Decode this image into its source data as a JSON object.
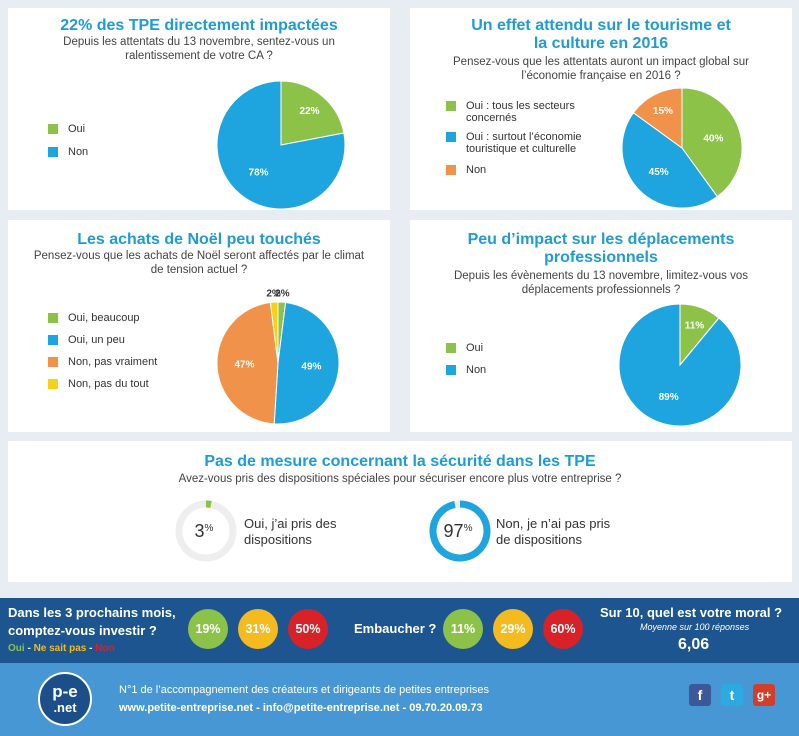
{
  "panel1": {
    "title": "22% des TPE directement impactées",
    "subtitle_l1": "Depuis les attentats du 13 novembre, sentez-vous un",
    "subtitle_l2": "ralentissement de votre CA ?",
    "legend": [
      "Oui",
      "Non"
    ]
  },
  "panel2": {
    "title_l1": "Un effet attendu sur le tourisme et",
    "title_l2": "la culture en 2016",
    "subtitle_l1": "Pensez-vous que les attentats auront un impact global sur",
    "subtitle_l2": "l’économie française en 2016 ?",
    "legend": [
      {
        "l1": "Oui : tous les secteurs",
        "l2": "concernés"
      },
      {
        "l1": "Oui : surtout l’économie",
        "l2": "touristique et culturelle"
      },
      {
        "l1": "Non",
        "l2": ""
      }
    ]
  },
  "panel3": {
    "title": "Les achats de Noël peu touchés",
    "subtitle_l1": "Pensez-vous que les achats de Noël seront affectés par le climat",
    "subtitle_l2": "de tension actuel ?",
    "legend": [
      "Oui, beaucoup",
      "Oui, un peu",
      "Non, pas vraiment",
      "Non, pas du tout"
    ]
  },
  "panel4": {
    "title_l1": "Peu d’impact sur les déplacements",
    "title_l2": "professionnels",
    "subtitle_l1": "Depuis les évènements du 13 novembre, limitez-vous vos",
    "subtitle_l2": "déplacements professionnels ?",
    "legend": [
      "Oui",
      "Non"
    ]
  },
  "panel5": {
    "title": "Pas de mesure concernant la sécurité dans les TPE",
    "subtitle": "Avez-vous pris des dispositions spéciales pour sécuriser encore plus votre entreprise ?",
    "yes_l1": "Oui, j’ai pris des",
    "yes_l2": "dispositions",
    "no_l1": "Non, je n’ai pas pris",
    "no_l2": "de dispositions"
  },
  "band": {
    "invest_q_l1": "Dans les 3 prochains mois,",
    "invest_q_l2": "comptez-vous investir ?",
    "key_oui": "Oui",
    "key_sep1": " - ",
    "key_nsp": "Ne sait pas",
    "key_sep2": " - ",
    "key_non": "Non",
    "hire_q": "Embaucher ?",
    "moral_q": "Sur 10, quel est votre moral ?",
    "moral_note": "Moyenne sur 100 réponses",
    "moral_value": "6,06"
  },
  "footer": {
    "logo_top": "p-e",
    "logo_bottom": ".net",
    "tagline": "N°1 de l’accompagnement des créateurs et dirigeants de petites entreprises",
    "contact": "www.petite-entreprise.net - info@petite-entreprise.net - 09.70.20.09.73",
    "fb": "f",
    "tw": "t",
    "gp": "g+"
  },
  "colors": {
    "green": "#8dc249",
    "blue": "#1ea5e0",
    "orange": "#f0924a",
    "yellow": "#f5d117",
    "red": "#d92128",
    "amber": "#f5ba1e",
    "title": "#1f9bd7"
  },
  "chart_data": [
    {
      "type": "pie",
      "title": "22% des TPE directement impactées",
      "categories": [
        "Oui",
        "Non"
      ],
      "values": [
        22,
        78
      ],
      "colors": [
        "#8dc249",
        "#1ea5e0"
      ]
    },
    {
      "type": "pie",
      "title": "Un effet attendu sur le tourisme et la culture en 2016",
      "categories": [
        "Oui : tous les secteurs concernés",
        "Oui : surtout l’économie touristique et culturelle",
        "Non"
      ],
      "values": [
        40,
        45,
        15
      ],
      "colors": [
        "#8dc249",
        "#1ea5e0",
        "#f0924a"
      ]
    },
    {
      "type": "pie",
      "title": "Les achats de Noël peu touchés",
      "categories": [
        "Oui, beaucoup",
        "Oui, un peu",
        "Non, pas vraiment",
        "Non, pas du tout"
      ],
      "values": [
        2,
        49,
        47,
        2
      ],
      "colors": [
        "#8dc249",
        "#1ea5e0",
        "#f0924a",
        "#f5d117"
      ]
    },
    {
      "type": "pie",
      "title": "Peu d’impact sur les déplacements professionnels",
      "categories": [
        "Oui",
        "Non"
      ],
      "values": [
        11,
        89
      ],
      "colors": [
        "#8dc249",
        "#1ea5e0"
      ]
    },
    {
      "type": "pie",
      "title": "Pas de mesure concernant la sécurité dans les TPE",
      "categories": [
        "Oui, j’ai pris des dispositions",
        "Non, je n’ai pas pris de dispositions"
      ],
      "values": [
        3,
        97
      ],
      "colors": [
        "#8dc249",
        "#1ea5e0"
      ]
    },
    {
      "type": "table",
      "title": "Dans les 3 prochains mois, comptez-vous investir ?",
      "categories": [
        "Oui",
        "Ne sait pas",
        "Non"
      ],
      "values": [
        19,
        31,
        50
      ],
      "colors": [
        "#8dc249",
        "#f5ba1e",
        "#d92128"
      ]
    },
    {
      "type": "table",
      "title": "Embaucher ?",
      "categories": [
        "Oui",
        "Ne sait pas",
        "Non"
      ],
      "values": [
        11,
        29,
        60
      ],
      "colors": [
        "#8dc249",
        "#f5ba1e",
        "#d92128"
      ]
    }
  ]
}
